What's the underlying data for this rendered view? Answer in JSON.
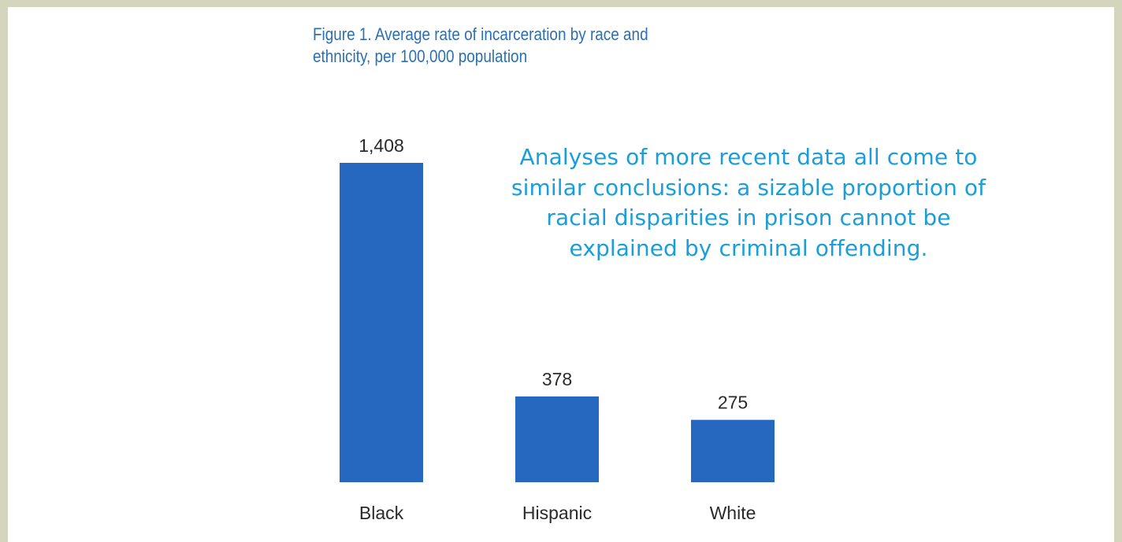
{
  "figure": {
    "title": "Figure 1. Average rate of incarceration by race and ethnicity, per 100,000 population"
  },
  "callout": {
    "text": "Analyses of more recent data all come to similar conclusions: a sizable proportion of racial disparities in prison cannot be explained by criminal offending."
  },
  "colors": {
    "background": "#d4d5bd",
    "bar": "#2667c0",
    "title": "#2b6fb5",
    "callout": "#1a9ed9"
  },
  "chart_data": {
    "type": "bar",
    "title": "Figure 1. Average rate of incarceration by race and ethnicity, per 100,000 population",
    "categories": [
      "Black",
      "Hispanic",
      "White"
    ],
    "values": [
      1408,
      378,
      275
    ],
    "value_labels": [
      "1,408",
      "378",
      "275"
    ],
    "xlabel": "",
    "ylabel": "",
    "ylim": [
      0,
      1408
    ],
    "grid": false,
    "legend": "none"
  }
}
